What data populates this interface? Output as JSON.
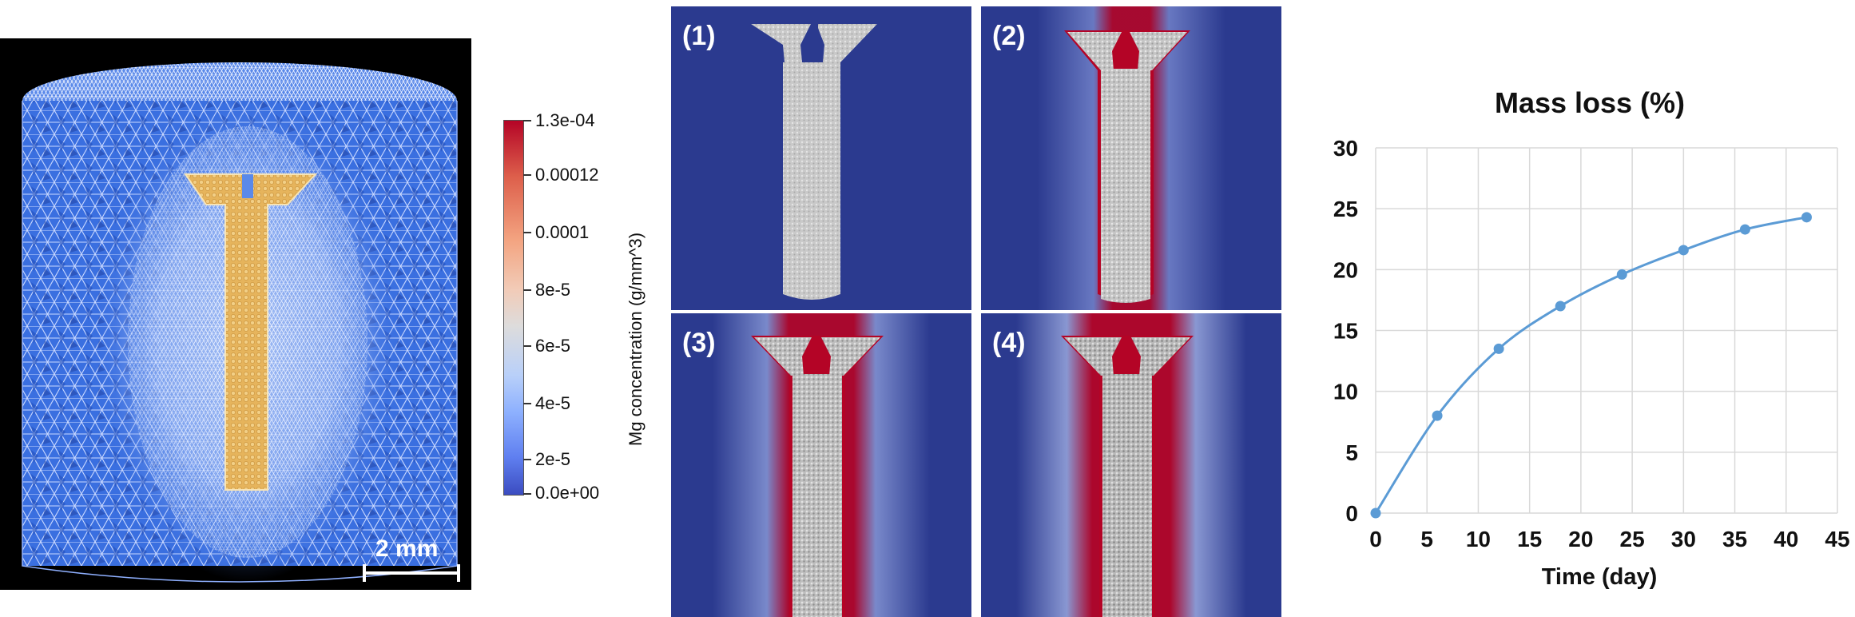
{
  "mesh_panel": {
    "scale_bar_label": "2 mm"
  },
  "colorbar": {
    "title": "Mg concentration (g/mm^3)",
    "tick_labels": [
      "1.3e-04",
      "0.00012",
      "0.0001",
      "8e-5",
      "6e-5",
      "4e-5",
      "2e-5",
      "0.0e+00"
    ]
  },
  "snapshots": [
    {
      "label": "(1)"
    },
    {
      "label": "(2)"
    },
    {
      "label": "(3)"
    },
    {
      "label": "(4)"
    }
  ],
  "colors": {
    "mesh_blue": "#3a6fe0",
    "screw_gold": "#e8b45a",
    "snapshot_bg": "#2b3a8f",
    "hot_red": "#b40426",
    "series_line": "#5b9bd5"
  },
  "chart_data": {
    "type": "line",
    "title": "Mass loss (%)",
    "xlabel": "Time (day)",
    "ylabel": "",
    "x": [
      0,
      6,
      12,
      18,
      24,
      30,
      36,
      42
    ],
    "series": [
      {
        "name": "",
        "values": [
          0,
          8,
          13.5,
          17,
          19.6,
          21.6,
          23.3,
          24.3
        ]
      }
    ],
    "xlim": [
      0,
      45
    ],
    "ylim": [
      0,
      30
    ],
    "xticks": [
      0,
      5,
      10,
      15,
      20,
      25,
      30,
      35,
      40,
      45
    ],
    "yticks": [
      0,
      5,
      10,
      15,
      20,
      25,
      30
    ],
    "grid": true,
    "legend": "none"
  }
}
